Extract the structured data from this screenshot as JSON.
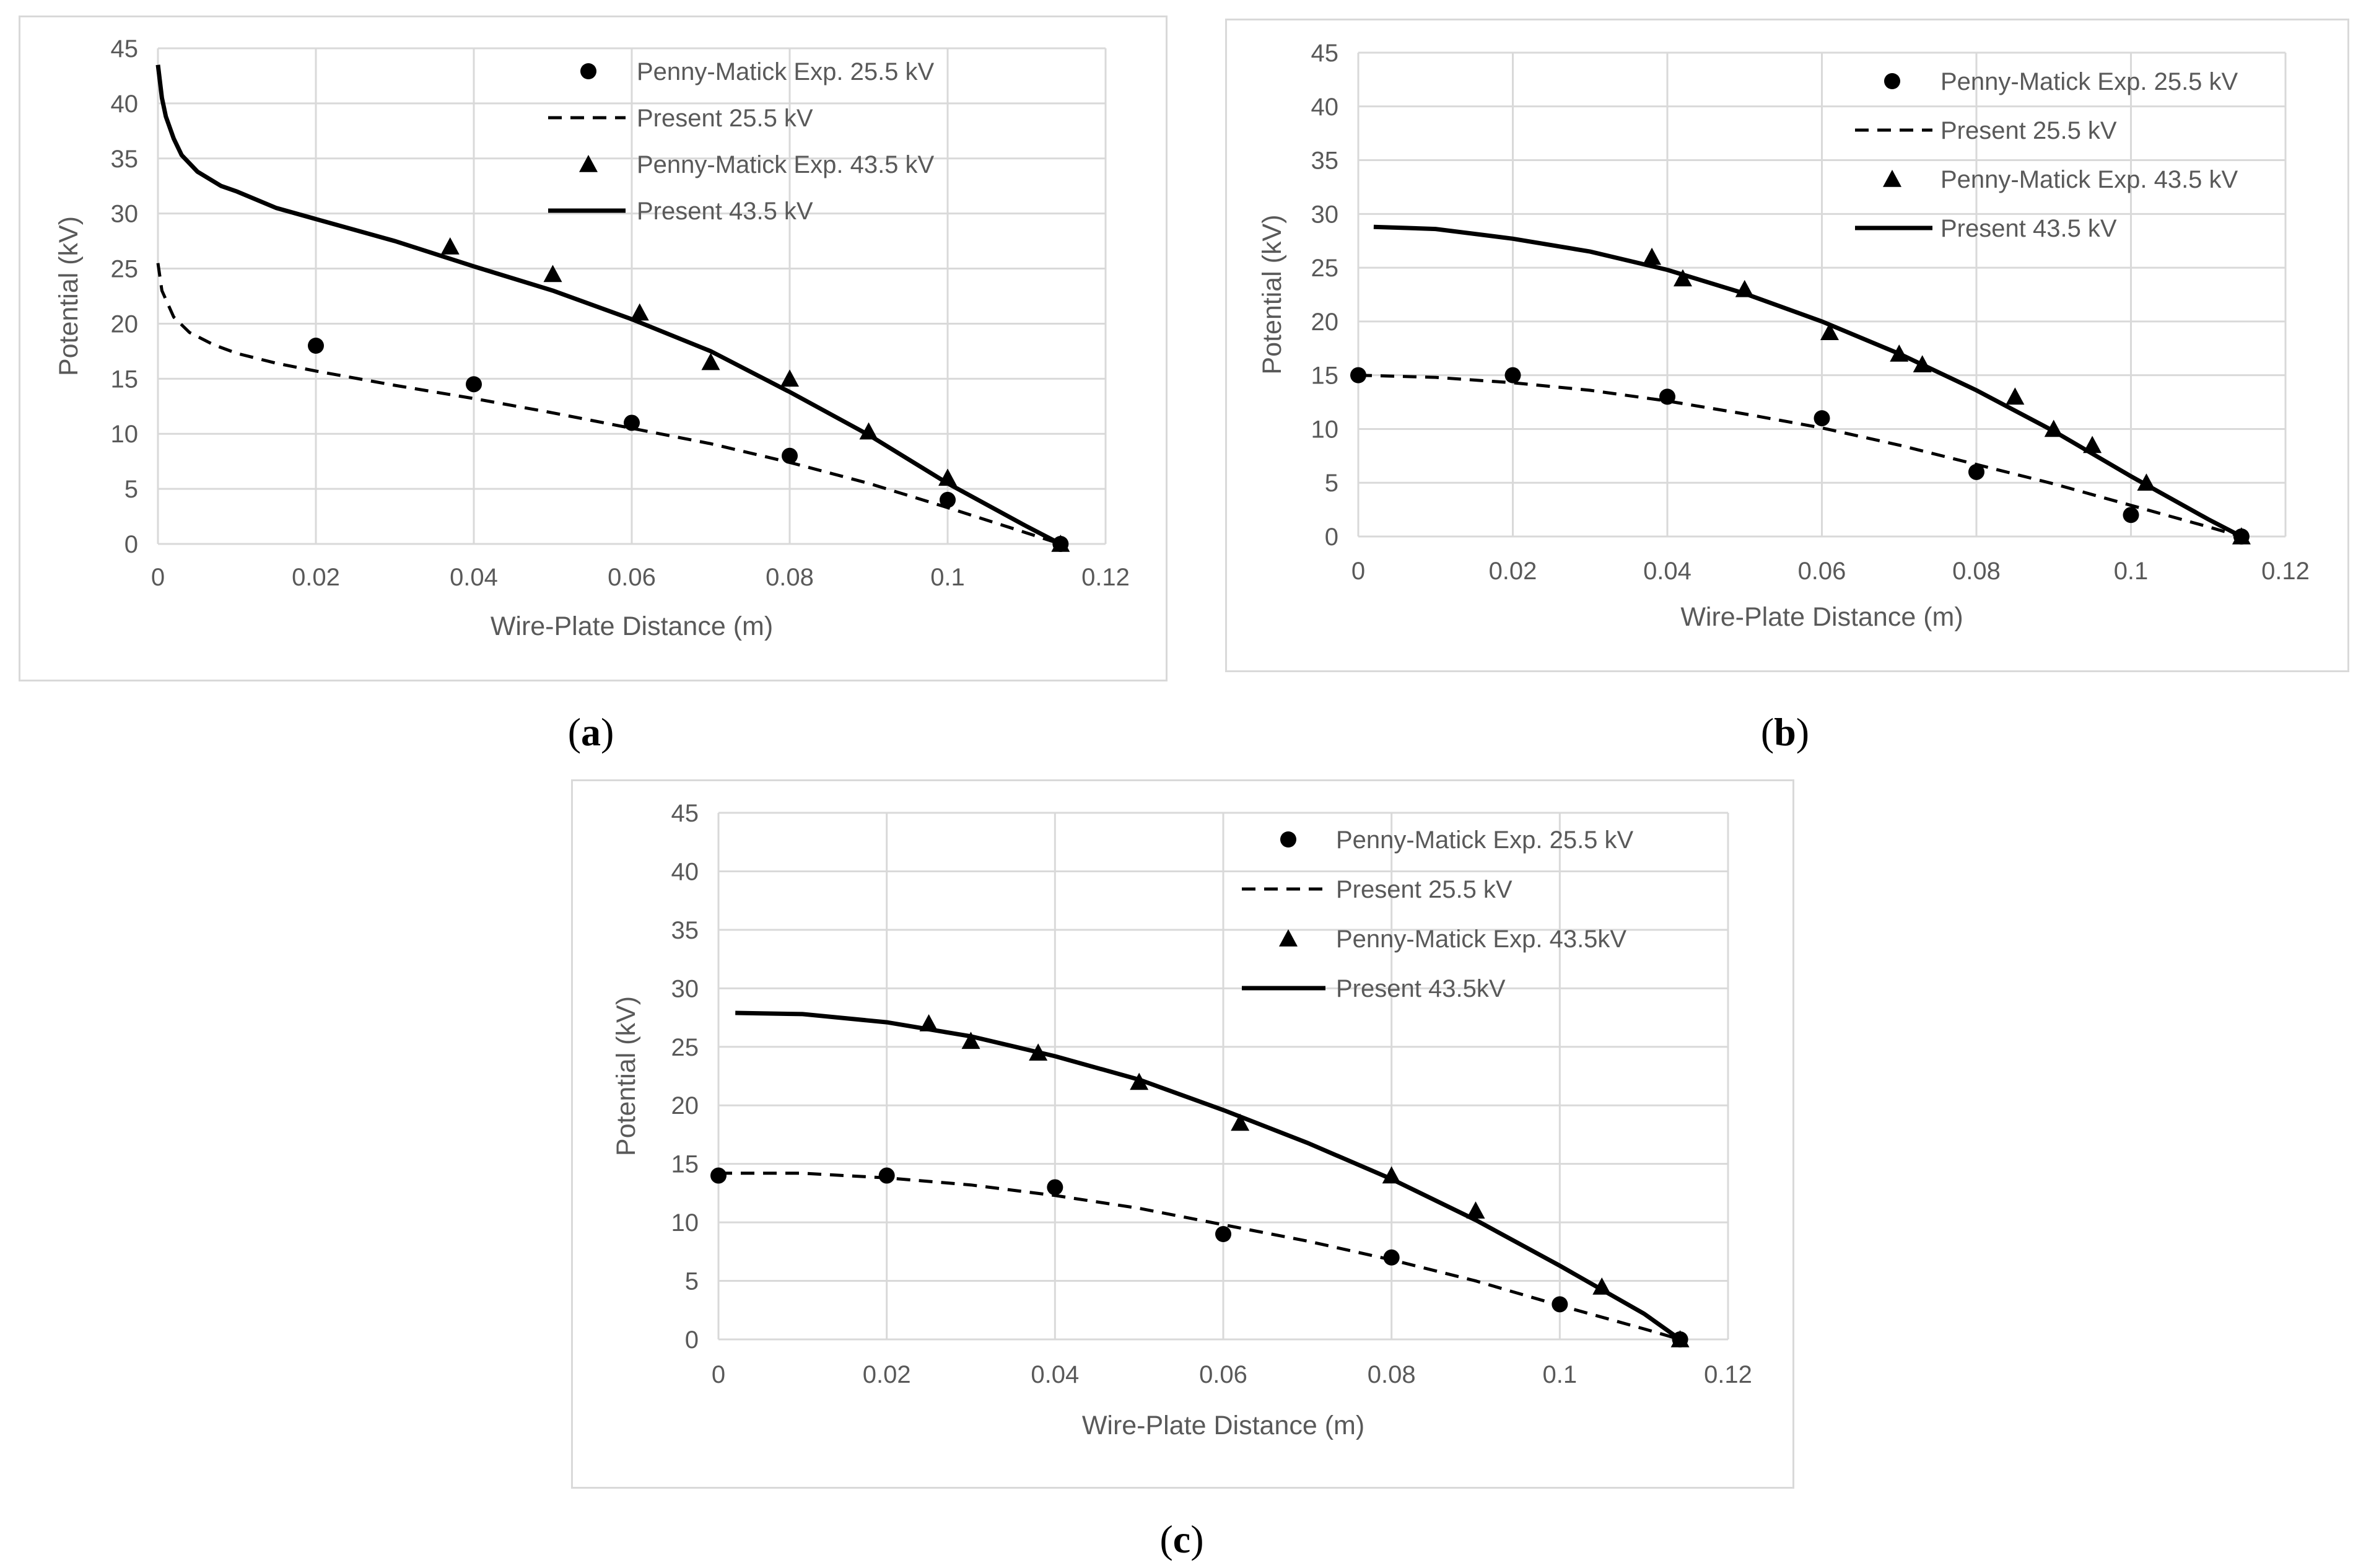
{
  "chart_data": [
    {
      "panel": "a",
      "type": "line",
      "xlabel": "Wire-Plate Distance (m)",
      "ylabel": "Potential (kV)",
      "xlim": [
        0,
        0.12
      ],
      "ylim": [
        0,
        45
      ],
      "xticks": [
        "0",
        "0.02",
        "0.04",
        "0.06",
        "0.08",
        "0.1",
        "0.12"
      ],
      "yticks": [
        "0",
        "5",
        "10",
        "15",
        "20",
        "25",
        "30",
        "35",
        "40",
        "45"
      ],
      "legend_position": "top-right",
      "series": [
        {
          "name": "Penny-Matick Exp. 25.5 kV",
          "style": "marker-circle",
          "x": [
            0.02,
            0.04,
            0.06,
            0.08,
            0.1,
            0.1143
          ],
          "y": [
            18,
            14.5,
            11,
            8,
            4,
            0
          ]
        },
        {
          "name": "Present 25.5 kV",
          "style": "line-dashed",
          "x": [
            0,
            0.0005,
            0.002,
            0.004,
            0.007,
            0.01,
            0.015,
            0.02,
            0.03,
            0.04,
            0.05,
            0.06,
            0.07,
            0.08,
            0.09,
            0.1,
            0.11,
            0.1143
          ],
          "y": [
            25.5,
            23,
            20.6,
            19.2,
            18.1,
            17.3,
            16.4,
            15.7,
            14.4,
            13.2,
            11.9,
            10.5,
            9.1,
            7.4,
            5.5,
            3.3,
            1.0,
            0
          ]
        },
        {
          "name": "Penny-Matick Exp. 43.5 kV",
          "style": "marker-triangle",
          "x": [
            0.037,
            0.05,
            0.061,
            0.07,
            0.08,
            0.09,
            0.1,
            0.1143
          ],
          "y": [
            27,
            24.5,
            21,
            16.5,
            15,
            10.2,
            6,
            0
          ]
        },
        {
          "name": "Present 43.5 kV",
          "style": "line-solid",
          "x": [
            0,
            0.0005,
            0.001,
            0.002,
            0.003,
            0.005,
            0.008,
            0.01,
            0.015,
            0.02,
            0.03,
            0.04,
            0.05,
            0.06,
            0.07,
            0.08,
            0.09,
            0.1,
            0.11,
            0.1143
          ],
          "y": [
            43.5,
            40.5,
            38.8,
            36.8,
            35.3,
            33.8,
            32.5,
            32,
            30.5,
            29.5,
            27.5,
            25.2,
            23,
            20.4,
            17.5,
            13.8,
            9.9,
            5.5,
            1.6,
            0
          ]
        }
      ]
    },
    {
      "panel": "b",
      "type": "line",
      "xlabel": "Wire-Plate Distance (m)",
      "ylabel": "Potential (kV)",
      "xlim": [
        0,
        0.12
      ],
      "ylim": [
        0,
        45
      ],
      "xticks": [
        "0",
        "0.02",
        "0.04",
        "0.06",
        "0.08",
        "0.1",
        "0.12"
      ],
      "yticks": [
        "0",
        "5",
        "10",
        "15",
        "20",
        "25",
        "30",
        "35",
        "40",
        "45"
      ],
      "legend_position": "top-right",
      "series": [
        {
          "name": "Penny-Matick Exp. 25.5 kV",
          "style": "marker-circle",
          "x": [
            0,
            0.02,
            0.04,
            0.06,
            0.08,
            0.1,
            0.1143
          ],
          "y": [
            15,
            15,
            13,
            11,
            6,
            2,
            0
          ]
        },
        {
          "name": "Present 25.5 kV",
          "style": "line-dashed",
          "x": [
            0,
            0.01,
            0.02,
            0.03,
            0.04,
            0.05,
            0.06,
            0.07,
            0.08,
            0.09,
            0.1,
            0.11,
            0.1143
          ],
          "y": [
            15,
            14.8,
            14.3,
            13.6,
            12.6,
            11.4,
            10.1,
            8.5,
            6.7,
            4.9,
            2.9,
            0.9,
            0
          ]
        },
        {
          "name": "Penny-Matick Exp. 43.5 kV",
          "style": "marker-triangle",
          "x": [
            0.038,
            0.042,
            0.05,
            0.061,
            0.07,
            0.073,
            0.085,
            0.09,
            0.095,
            0.102,
            0.1143
          ],
          "y": [
            26,
            24,
            23,
            19,
            17,
            16,
            13,
            10,
            8.5,
            5,
            0
          ]
        },
        {
          "name": "Present 43.5 kV",
          "style": "line-solid",
          "x": [
            0.002,
            0.01,
            0.02,
            0.03,
            0.04,
            0.05,
            0.06,
            0.07,
            0.08,
            0.09,
            0.1,
            0.11,
            0.1143
          ],
          "y": [
            28.8,
            28.6,
            27.7,
            26.5,
            24.8,
            22.6,
            20,
            17,
            13.6,
            9.8,
            5.6,
            1.6,
            0
          ]
        }
      ]
    },
    {
      "panel": "c",
      "type": "line",
      "xlabel": "Wire-Plate Distance (m)",
      "ylabel": "Potential (kV)",
      "xlim": [
        0,
        0.12
      ],
      "ylim": [
        0,
        45
      ],
      "xticks": [
        "0",
        "0.02",
        "0.04",
        "0.06",
        "0.08",
        "0.1",
        "0.12"
      ],
      "yticks": [
        "0",
        "5",
        "10",
        "15",
        "20",
        "25",
        "30",
        "35",
        "40",
        "45"
      ],
      "legend_position": "top-right",
      "series": [
        {
          "name": "Penny-Matick Exp. 25.5 kV",
          "style": "marker-circle",
          "x": [
            0,
            0.02,
            0.04,
            0.06,
            0.08,
            0.1,
            0.1143
          ],
          "y": [
            14,
            14,
            13,
            9,
            7,
            3,
            0
          ]
        },
        {
          "name": "Present 25.5 kV",
          "style": "line-dashed",
          "x": [
            0,
            0.01,
            0.02,
            0.03,
            0.04,
            0.05,
            0.06,
            0.07,
            0.08,
            0.09,
            0.1,
            0.11,
            0.1143
          ],
          "y": [
            14.2,
            14.2,
            13.8,
            13.2,
            12.3,
            11.2,
            9.8,
            8.4,
            6.8,
            5,
            2.9,
            0.9,
            0
          ]
        },
        {
          "name": "Penny-Matick Exp. 43.5kV",
          "style": "marker-triangle",
          "x": [
            0.025,
            0.03,
            0.038,
            0.05,
            0.062,
            0.08,
            0.09,
            0.105,
            0.1143
          ],
          "y": [
            27,
            25.5,
            24.5,
            22,
            18.5,
            14,
            11,
            4.5,
            0
          ]
        },
        {
          "name": "Present 43.5kV",
          "style": "line-solid",
          "x": [
            0.002,
            0.01,
            0.02,
            0.03,
            0.04,
            0.05,
            0.06,
            0.07,
            0.08,
            0.09,
            0.1,
            0.11,
            0.1143
          ],
          "y": [
            27.9,
            27.8,
            27.1,
            25.9,
            24.2,
            22.2,
            19.6,
            16.8,
            13.7,
            10.2,
            6.3,
            2.2,
            0
          ]
        }
      ]
    }
  ],
  "panel_labels": {
    "a": {
      "open": "(",
      "letter": "a",
      "close": ")"
    },
    "b": {
      "open": "(",
      "letter": "b",
      "close": ")"
    },
    "c": {
      "open": "(",
      "letter": "c",
      "close": ")"
    }
  }
}
